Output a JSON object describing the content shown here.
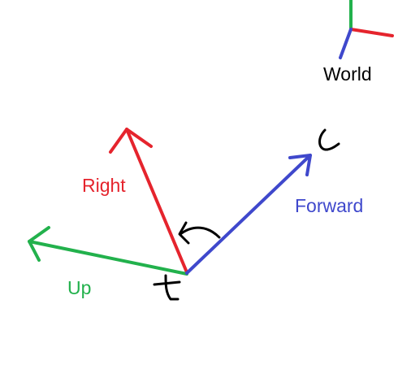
{
  "diagram": {
    "world_label": "World",
    "right_label": "Right",
    "forward_label": "Forward",
    "up_label": "Up"
  },
  "colors": {
    "red": "#e5242d",
    "green": "#22b14c",
    "blue": "#3f48cc",
    "black": "#000000",
    "background": "#ffffff"
  }
}
